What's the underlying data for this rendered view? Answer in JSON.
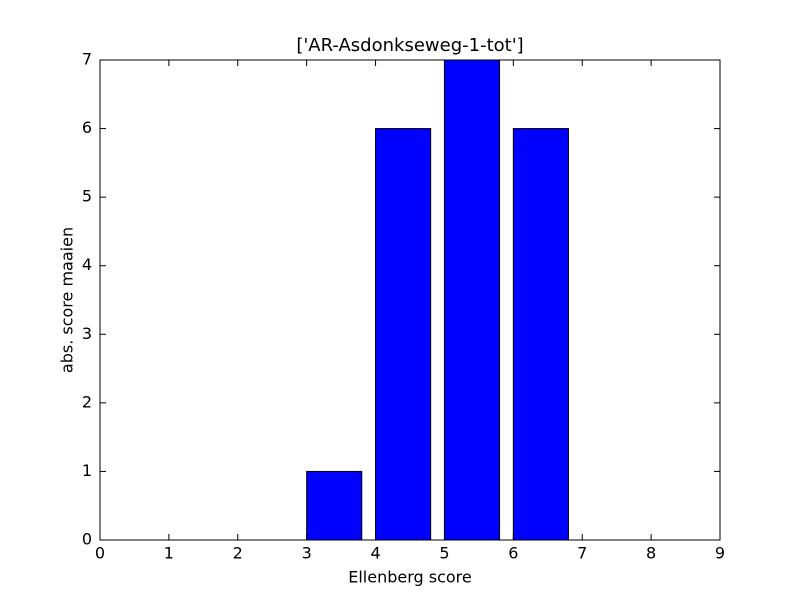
{
  "chart_data": {
    "type": "bar",
    "title": "['AR-Asdonkseweg-1-tot']",
    "xlabel": "Ellenberg score",
    "ylabel": "abs. score maaien",
    "x": [
      0,
      1,
      2,
      3,
      4,
      5,
      6,
      7,
      8
    ],
    "values": [
      0,
      0,
      0,
      1,
      6,
      7,
      6,
      0,
      0
    ],
    "bar_width": 0.8,
    "color": "#0000ff",
    "xlim": [
      0,
      9
    ],
    "xticks": [
      0,
      1,
      2,
      3,
      4,
      5,
      6,
      7,
      8,
      9
    ],
    "ylim": [
      0,
      7
    ],
    "yticks": [
      0,
      1,
      2,
      3,
      4,
      5,
      6,
      7
    ],
    "grid": false
  }
}
